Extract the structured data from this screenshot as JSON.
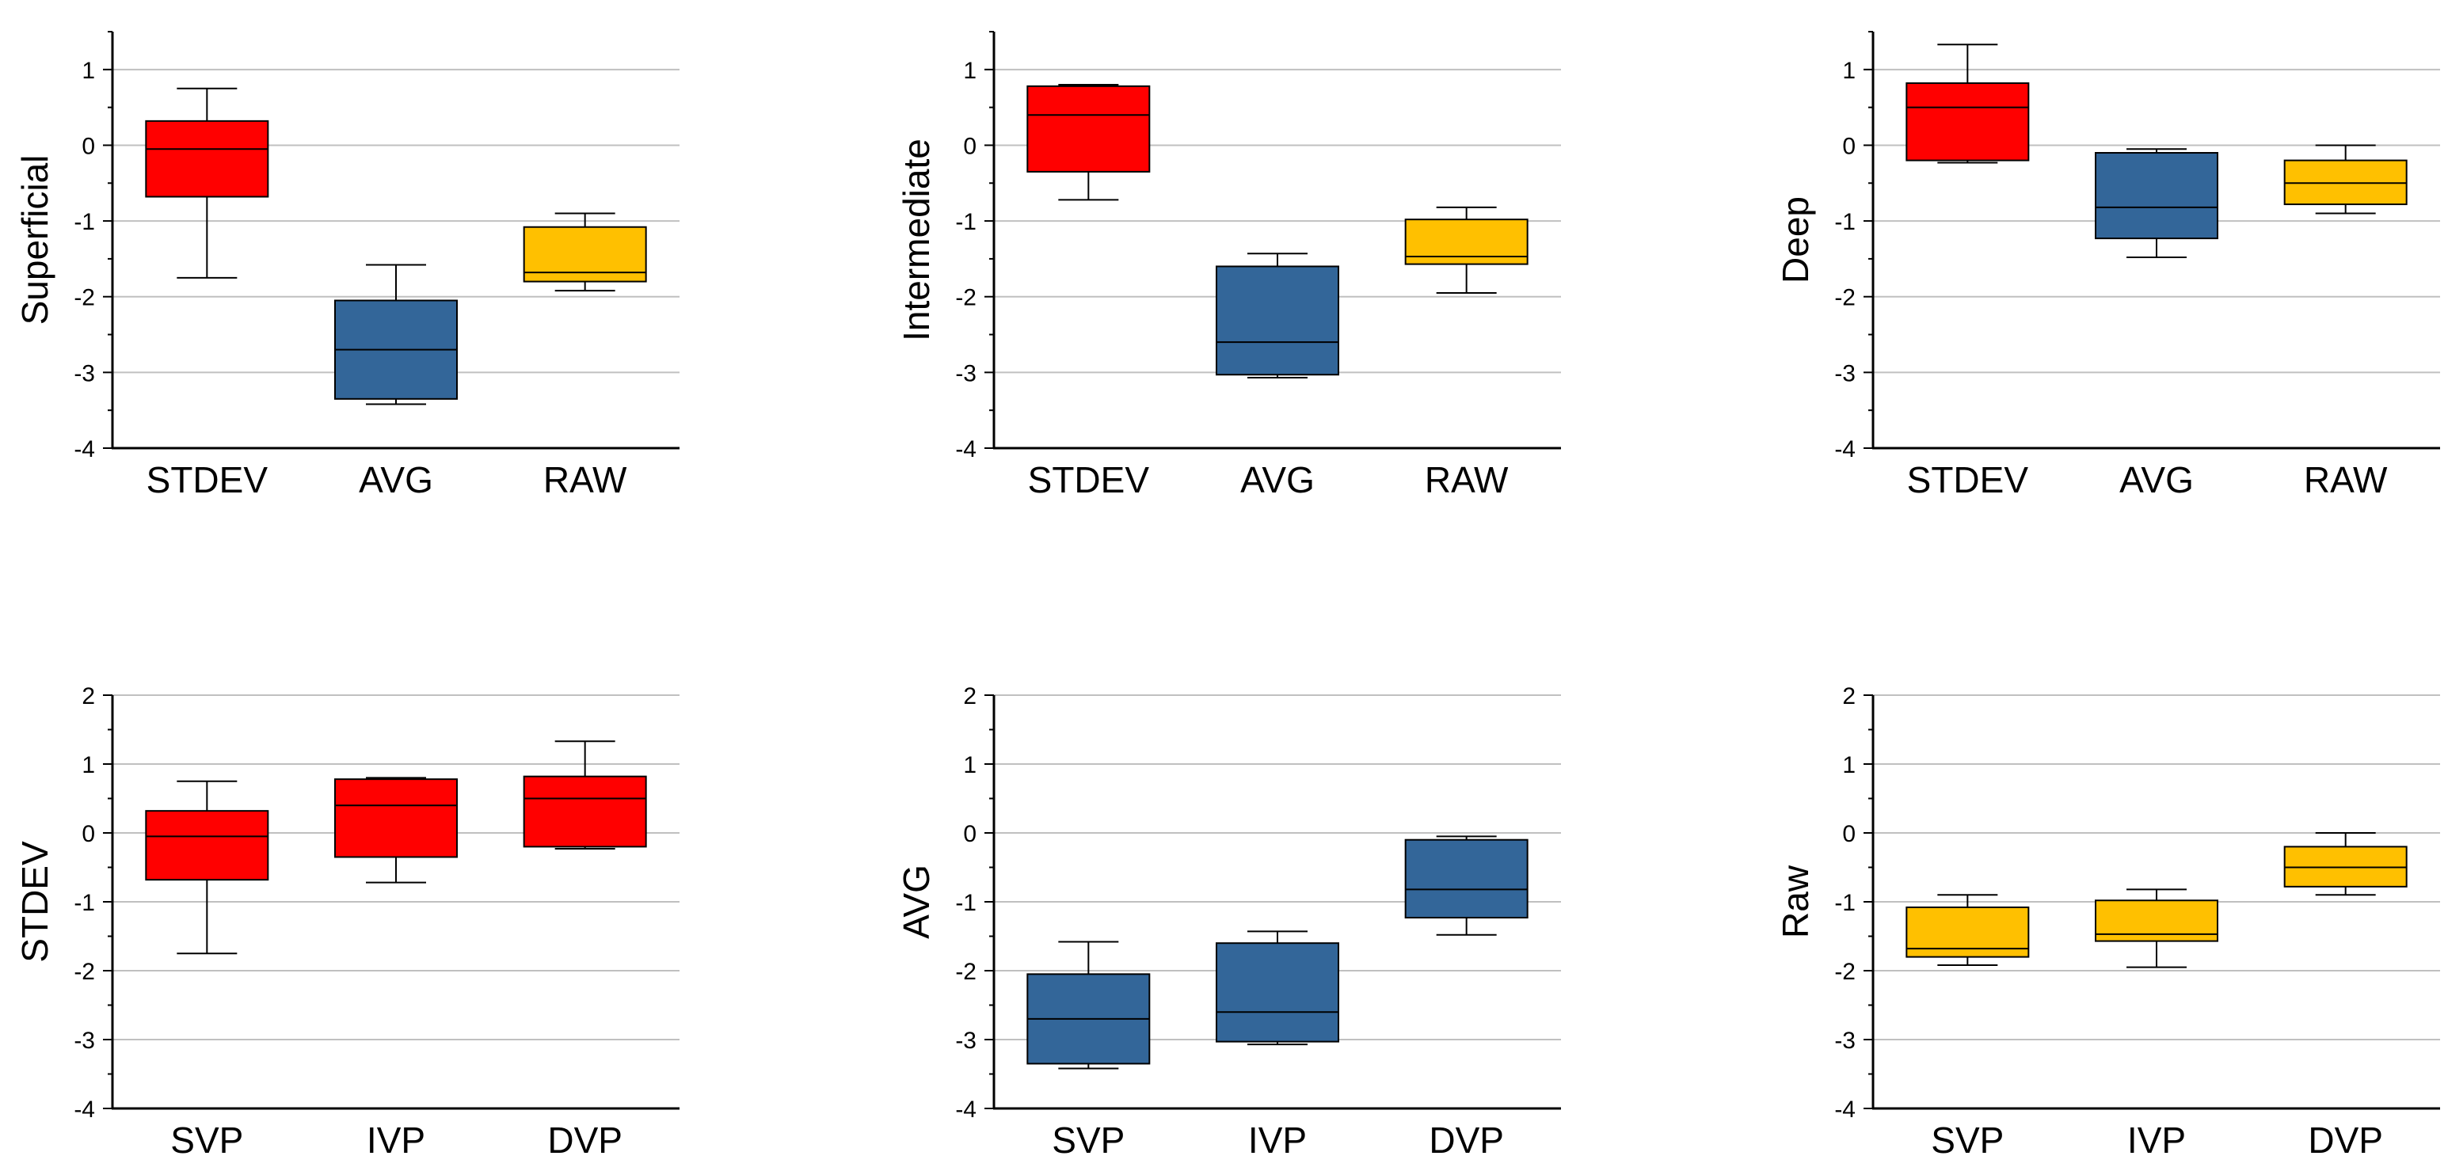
{
  "colors": {
    "stdev": "#ff0000",
    "avg": "#336699",
    "raw": "#ffc000",
    "grid": "#c0c0c0",
    "axis": "#000000"
  },
  "chart_data": [
    {
      "type": "box",
      "ylabel": "Superficial",
      "ylim": [
        -4,
        1.5
      ],
      "yticks": [
        1,
        0,
        -1,
        -2,
        -3,
        -4
      ],
      "grid": true,
      "categories": [
        "STDEV",
        "AVG",
        "RAW"
      ],
      "boxes": [
        {
          "name": "STDEV",
          "color_key": "stdev",
          "whisker_low": -1.75,
          "q1": -0.68,
          "median": -0.05,
          "q3": 0.32,
          "whisker_high": 0.75
        },
        {
          "name": "AVG",
          "color_key": "avg",
          "whisker_low": -3.42,
          "q1": -3.35,
          "median": -2.7,
          "q3": -2.05,
          "whisker_high": -1.58
        },
        {
          "name": "RAW",
          "color_key": "raw",
          "whisker_low": -1.92,
          "q1": -1.8,
          "median": -1.68,
          "q3": -1.08,
          "whisker_high": -0.9
        }
      ]
    },
    {
      "type": "box",
      "ylabel": "Intermediate",
      "ylim": [
        -4,
        1.5
      ],
      "yticks": [
        1,
        0,
        -1,
        -2,
        -3,
        -4
      ],
      "grid": true,
      "categories": [
        "STDEV",
        "AVG",
        "RAW"
      ],
      "boxes": [
        {
          "name": "STDEV",
          "color_key": "stdev",
          "whisker_low": -0.72,
          "q1": -0.35,
          "median": 0.4,
          "q3": 0.78,
          "whisker_high": 0.8
        },
        {
          "name": "AVG",
          "color_key": "avg",
          "whisker_low": -3.07,
          "q1": -3.03,
          "median": -2.6,
          "q3": -1.6,
          "whisker_high": -1.43
        },
        {
          "name": "RAW",
          "color_key": "raw",
          "whisker_low": -1.95,
          "q1": -1.57,
          "median": -1.47,
          "q3": -0.98,
          "whisker_high": -0.82
        }
      ]
    },
    {
      "type": "box",
      "ylabel": "Deep",
      "ylim": [
        -4,
        1.5
      ],
      "yticks": [
        1,
        0,
        -1,
        -2,
        -3,
        -4
      ],
      "grid": true,
      "categories": [
        "STDEV",
        "AVG",
        "RAW"
      ],
      "boxes": [
        {
          "name": "STDEV",
          "color_key": "stdev",
          "whisker_low": -0.23,
          "q1": -0.2,
          "median": 0.5,
          "q3": 0.82,
          "whisker_high": 1.33
        },
        {
          "name": "AVG",
          "color_key": "avg",
          "whisker_low": -1.48,
          "q1": -1.23,
          "median": -0.82,
          "q3": -0.1,
          "whisker_high": -0.05
        },
        {
          "name": "RAW",
          "color_key": "raw",
          "whisker_low": -0.9,
          "q1": -0.78,
          "median": -0.5,
          "q3": -0.2,
          "whisker_high": 0.0
        }
      ]
    },
    {
      "type": "box",
      "ylabel": "STDEV",
      "ylim": [
        -4,
        2
      ],
      "yticks": [
        2,
        1,
        0,
        -1,
        -2,
        -3,
        -4
      ],
      "grid": true,
      "categories": [
        "SVP",
        "IVP",
        "DVP"
      ],
      "boxes": [
        {
          "name": "SVP",
          "color_key": "stdev",
          "whisker_low": -1.75,
          "q1": -0.68,
          "median": -0.05,
          "q3": 0.32,
          "whisker_high": 0.75
        },
        {
          "name": "IVP",
          "color_key": "stdev",
          "whisker_low": -0.72,
          "q1": -0.35,
          "median": 0.4,
          "q3": 0.78,
          "whisker_high": 0.8
        },
        {
          "name": "DVP",
          "color_key": "stdev",
          "whisker_low": -0.23,
          "q1": -0.2,
          "median": 0.5,
          "q3": 0.82,
          "whisker_high": 1.33
        }
      ]
    },
    {
      "type": "box",
      "ylabel": "AVG",
      "ylim": [
        -4,
        2
      ],
      "yticks": [
        2,
        1,
        0,
        -1,
        -2,
        -3,
        -4
      ],
      "grid": true,
      "categories": [
        "SVP",
        "IVP",
        "DVP"
      ],
      "boxes": [
        {
          "name": "SVP",
          "color_key": "avg",
          "whisker_low": -3.42,
          "q1": -3.35,
          "median": -2.7,
          "q3": -2.05,
          "whisker_high": -1.58
        },
        {
          "name": "IVP",
          "color_key": "avg",
          "whisker_low": -3.07,
          "q1": -3.03,
          "median": -2.6,
          "q3": -1.6,
          "whisker_high": -1.43
        },
        {
          "name": "DVP",
          "color_key": "avg",
          "whisker_low": -1.48,
          "q1": -1.23,
          "median": -0.82,
          "q3": -0.1,
          "whisker_high": -0.05
        }
      ]
    },
    {
      "type": "box",
      "ylabel": "Raw",
      "ylim": [
        -4,
        2
      ],
      "yticks": [
        2,
        1,
        0,
        -1,
        -2,
        -3,
        -4
      ],
      "grid": true,
      "categories": [
        "SVP",
        "IVP",
        "DVP"
      ],
      "boxes": [
        {
          "name": "SVP",
          "color_key": "raw",
          "whisker_low": -1.92,
          "q1": -1.8,
          "median": -1.68,
          "q3": -1.08,
          "whisker_high": -0.9
        },
        {
          "name": "IVP",
          "color_key": "raw",
          "whisker_low": -1.95,
          "q1": -1.57,
          "median": -1.47,
          "q3": -0.98,
          "whisker_high": -0.82
        },
        {
          "name": "DVP",
          "color_key": "raw",
          "whisker_low": -0.9,
          "q1": -0.78,
          "median": -0.5,
          "q3": -0.2,
          "whisker_high": 0.0
        }
      ]
    }
  ]
}
